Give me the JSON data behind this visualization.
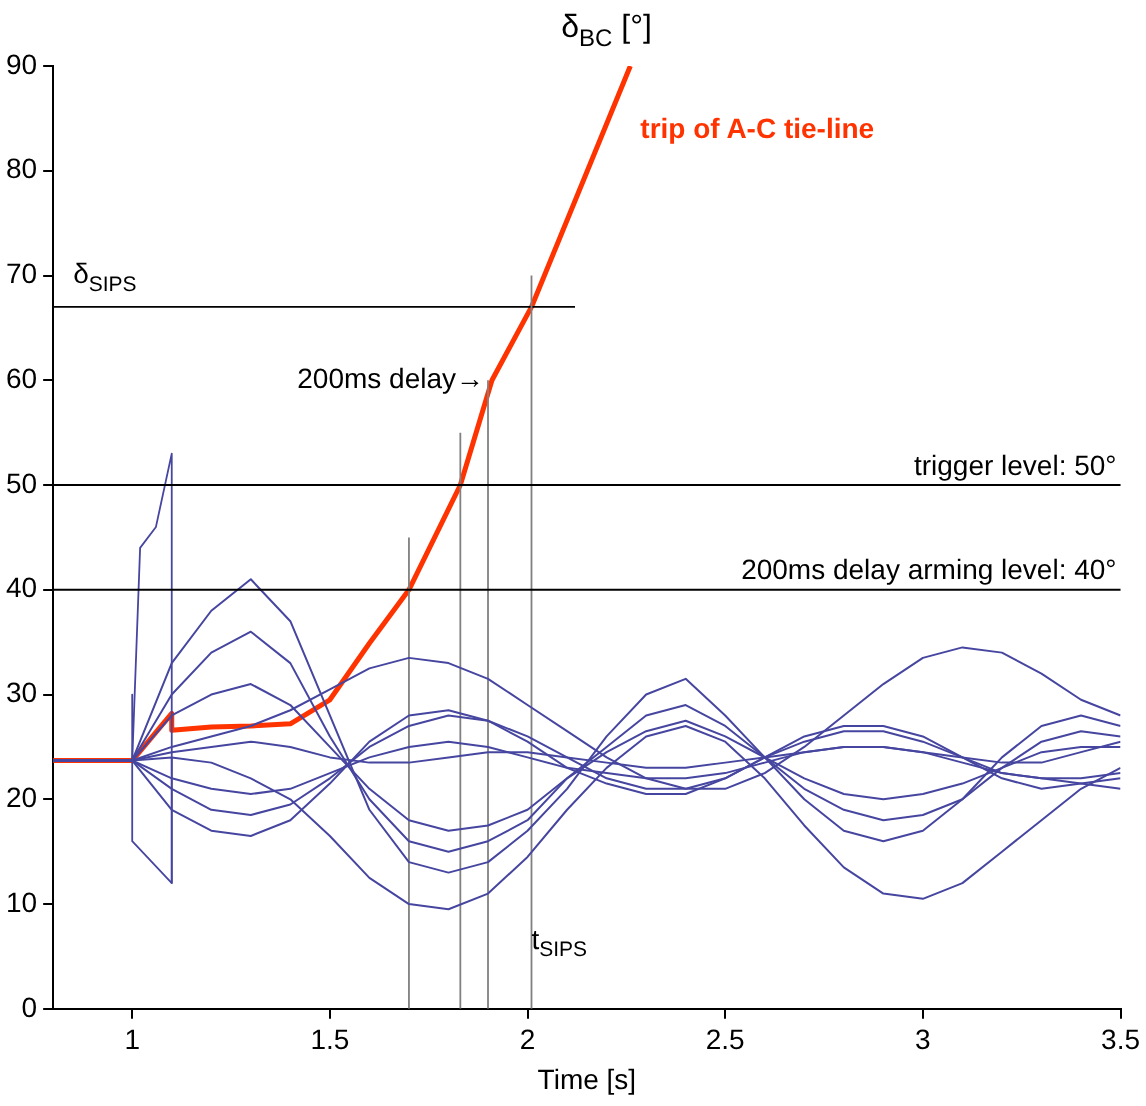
{
  "chart_data": {
    "type": "line",
    "ylabel": "δ$_{BC}$ [°]",
    "xlabel": "Time [s]",
    "x": [
      0.8,
      1.0,
      1.1,
      1.2,
      1.3,
      1.4,
      1.5,
      1.6,
      1.7,
      1.8,
      1.9,
      2.0,
      2.1,
      2.2,
      2.3,
      2.4,
      2.5,
      2.6,
      2.7,
      2.8,
      2.9,
      3.0,
      3.1,
      3.2,
      3.3,
      3.4,
      3.5
    ],
    "xlim": [
      0.8,
      3.5
    ],
    "xticks": [
      1,
      1.5,
      2,
      2.5,
      3,
      3.5
    ],
    "ylim": [
      0,
      90
    ],
    "yticks": [
      0,
      10,
      20,
      30,
      40,
      50,
      60,
      70,
      80,
      90
    ],
    "grid": false,
    "legend": false,
    "marker": "none",
    "line_style": "solid",
    "series": [
      {
        "color": "#4646a0",
        "values": [
          23.7,
          23.7,
          33,
          38,
          41,
          37,
          28,
          19,
          14,
          13,
          14,
          17,
          21,
          26,
          30,
          31.5,
          28,
          24,
          20,
          17,
          16,
          17,
          20,
          24,
          27,
          28,
          27
        ]
      },
      {
        "color": "#4646a0",
        "values": [
          23.7,
          23.7,
          30,
          34,
          36,
          33,
          26,
          20,
          16,
          15,
          16,
          18,
          22,
          25,
          28,
          29,
          27,
          24,
          21,
          19,
          18,
          18.5,
          20,
          23,
          25.5,
          26.5,
          26
        ]
      },
      {
        "color": "#4646a0",
        "values": [
          23.7,
          23.7,
          28,
          30,
          31,
          29,
          25,
          21,
          18,
          17,
          17.5,
          19,
          22,
          24.5,
          26.5,
          27.5,
          26,
          24,
          22,
          20.5,
          20,
          20.5,
          21.5,
          23,
          24.5,
          25,
          25
        ]
      },
      {
        "color": "#4646a0",
        "values": [
          23.7,
          23.7,
          21,
          19,
          18.5,
          19.5,
          22,
          25,
          27,
          28,
          27.5,
          26,
          24,
          22,
          21,
          21,
          22,
          24,
          25.5,
          26.5,
          26.5,
          25.5,
          24,
          22.5,
          22,
          22,
          22.5
        ]
      },
      {
        "color": "#4646a0",
        "values": [
          23.7,
          23.7,
          19,
          17,
          16.5,
          18,
          21.5,
          25.5,
          28,
          28.5,
          27.5,
          25.5,
          23,
          21.5,
          20.5,
          20.5,
          22,
          24,
          26,
          27,
          27,
          26,
          24,
          22,
          21,
          21.5,
          22
        ]
      },
      {
        "color": "#4646a0",
        "values": [
          23.7,
          23.7,
          25,
          26,
          27,
          28.5,
          30.5,
          32.5,
          33.5,
          33,
          31.5,
          29,
          26.5,
          24,
          22,
          21,
          21,
          22.5,
          25,
          28,
          31,
          33.5,
          34.5,
          34,
          32,
          29.5,
          28
        ]
      },
      {
        "color": "#4646a0",
        "values": [
          23.7,
          23.7,
          24,
          23.5,
          22,
          20,
          16.5,
          12.5,
          10,
          9.5,
          11,
          14.5,
          19,
          23,
          26,
          27,
          25.5,
          22,
          17.5,
          13.5,
          11,
          10.5,
          12,
          15,
          18,
          21,
          23
        ]
      },
      {
        "color": "#4646a0",
        "values": [
          23.7,
          23.7,
          24.5,
          25,
          25.5,
          25,
          24,
          23.5,
          23.5,
          24,
          24.5,
          24.5,
          24,
          23.5,
          23,
          23,
          23.5,
          24,
          24.5,
          25,
          25,
          24.5,
          24,
          23.5,
          23.5,
          24.5,
          25.5
        ]
      },
      {
        "color": "#4646a0",
        "values": [
          23.7,
          23.7,
          22,
          21,
          20.5,
          21,
          22.5,
          24,
          25,
          25.5,
          25,
          24,
          23,
          22.5,
          22,
          22,
          22.5,
          23.5,
          24.5,
          25,
          25,
          24.5,
          23.5,
          22.5,
          22,
          21.5,
          21
        ]
      },
      {
        "color": "#4646a0",
        "x": [
          1.0,
          1.02,
          1.06,
          1.1,
          1.1
        ],
        "values": [
          23.7,
          44,
          46,
          53,
          12
        ]
      },
      {
        "color": "#4646a0",
        "x": [
          1.0,
          1.0,
          1.1,
          1.1
        ],
        "values": [
          30,
          16,
          12,
          24
        ]
      },
      {
        "color": "#808080",
        "x": [
          1.7,
          1.7
        ],
        "values": [
          0,
          45
        ]
      },
      {
        "color": "#808080",
        "x": [
          1.83,
          1.83
        ],
        "values": [
          0,
          55
        ]
      },
      {
        "color": "#808080",
        "x": [
          1.9,
          1.9
        ],
        "values": [
          0,
          60
        ]
      },
      {
        "color": "#808080",
        "x": [
          2.01,
          2.01
        ],
        "values": [
          0,
          70
        ]
      },
      {
        "color": "#000000",
        "x": [
          0.8,
          2.12
        ],
        "values": [
          67,
          67
        ]
      },
      {
        "name": "trip of A-C tie-line",
        "color": "#ff3300",
        "x": [
          0.8,
          1.0,
          1.1,
          1.1,
          1.2,
          1.3,
          1.4,
          1.5,
          1.6,
          1.7,
          1.83,
          1.91,
          2.01,
          2.26
        ],
        "values": [
          23.7,
          23.7,
          28.2,
          26.6,
          26.9,
          27,
          27.2,
          29.5,
          34.9,
          40,
          50,
          60,
          67,
          90
        ]
      }
    ],
    "ref_lines": [
      {
        "axis": "y",
        "value": 50,
        "label": "trigger level: 50°",
        "color": "#000000"
      },
      {
        "axis": "y",
        "value": 40,
        "label": "200ms delay arming level: 40°",
        "color": "#000000"
      }
    ],
    "annotations": [
      {
        "text": "δ$_{SIPS}$",
        "x": 0.8,
        "y": 67
      },
      {
        "text": "200ms delay→",
        "x": 1.9,
        "y": 60
      },
      {
        "text": "t$_{SIPS}$",
        "x": 2.01,
        "y": 0
      }
    ]
  }
}
